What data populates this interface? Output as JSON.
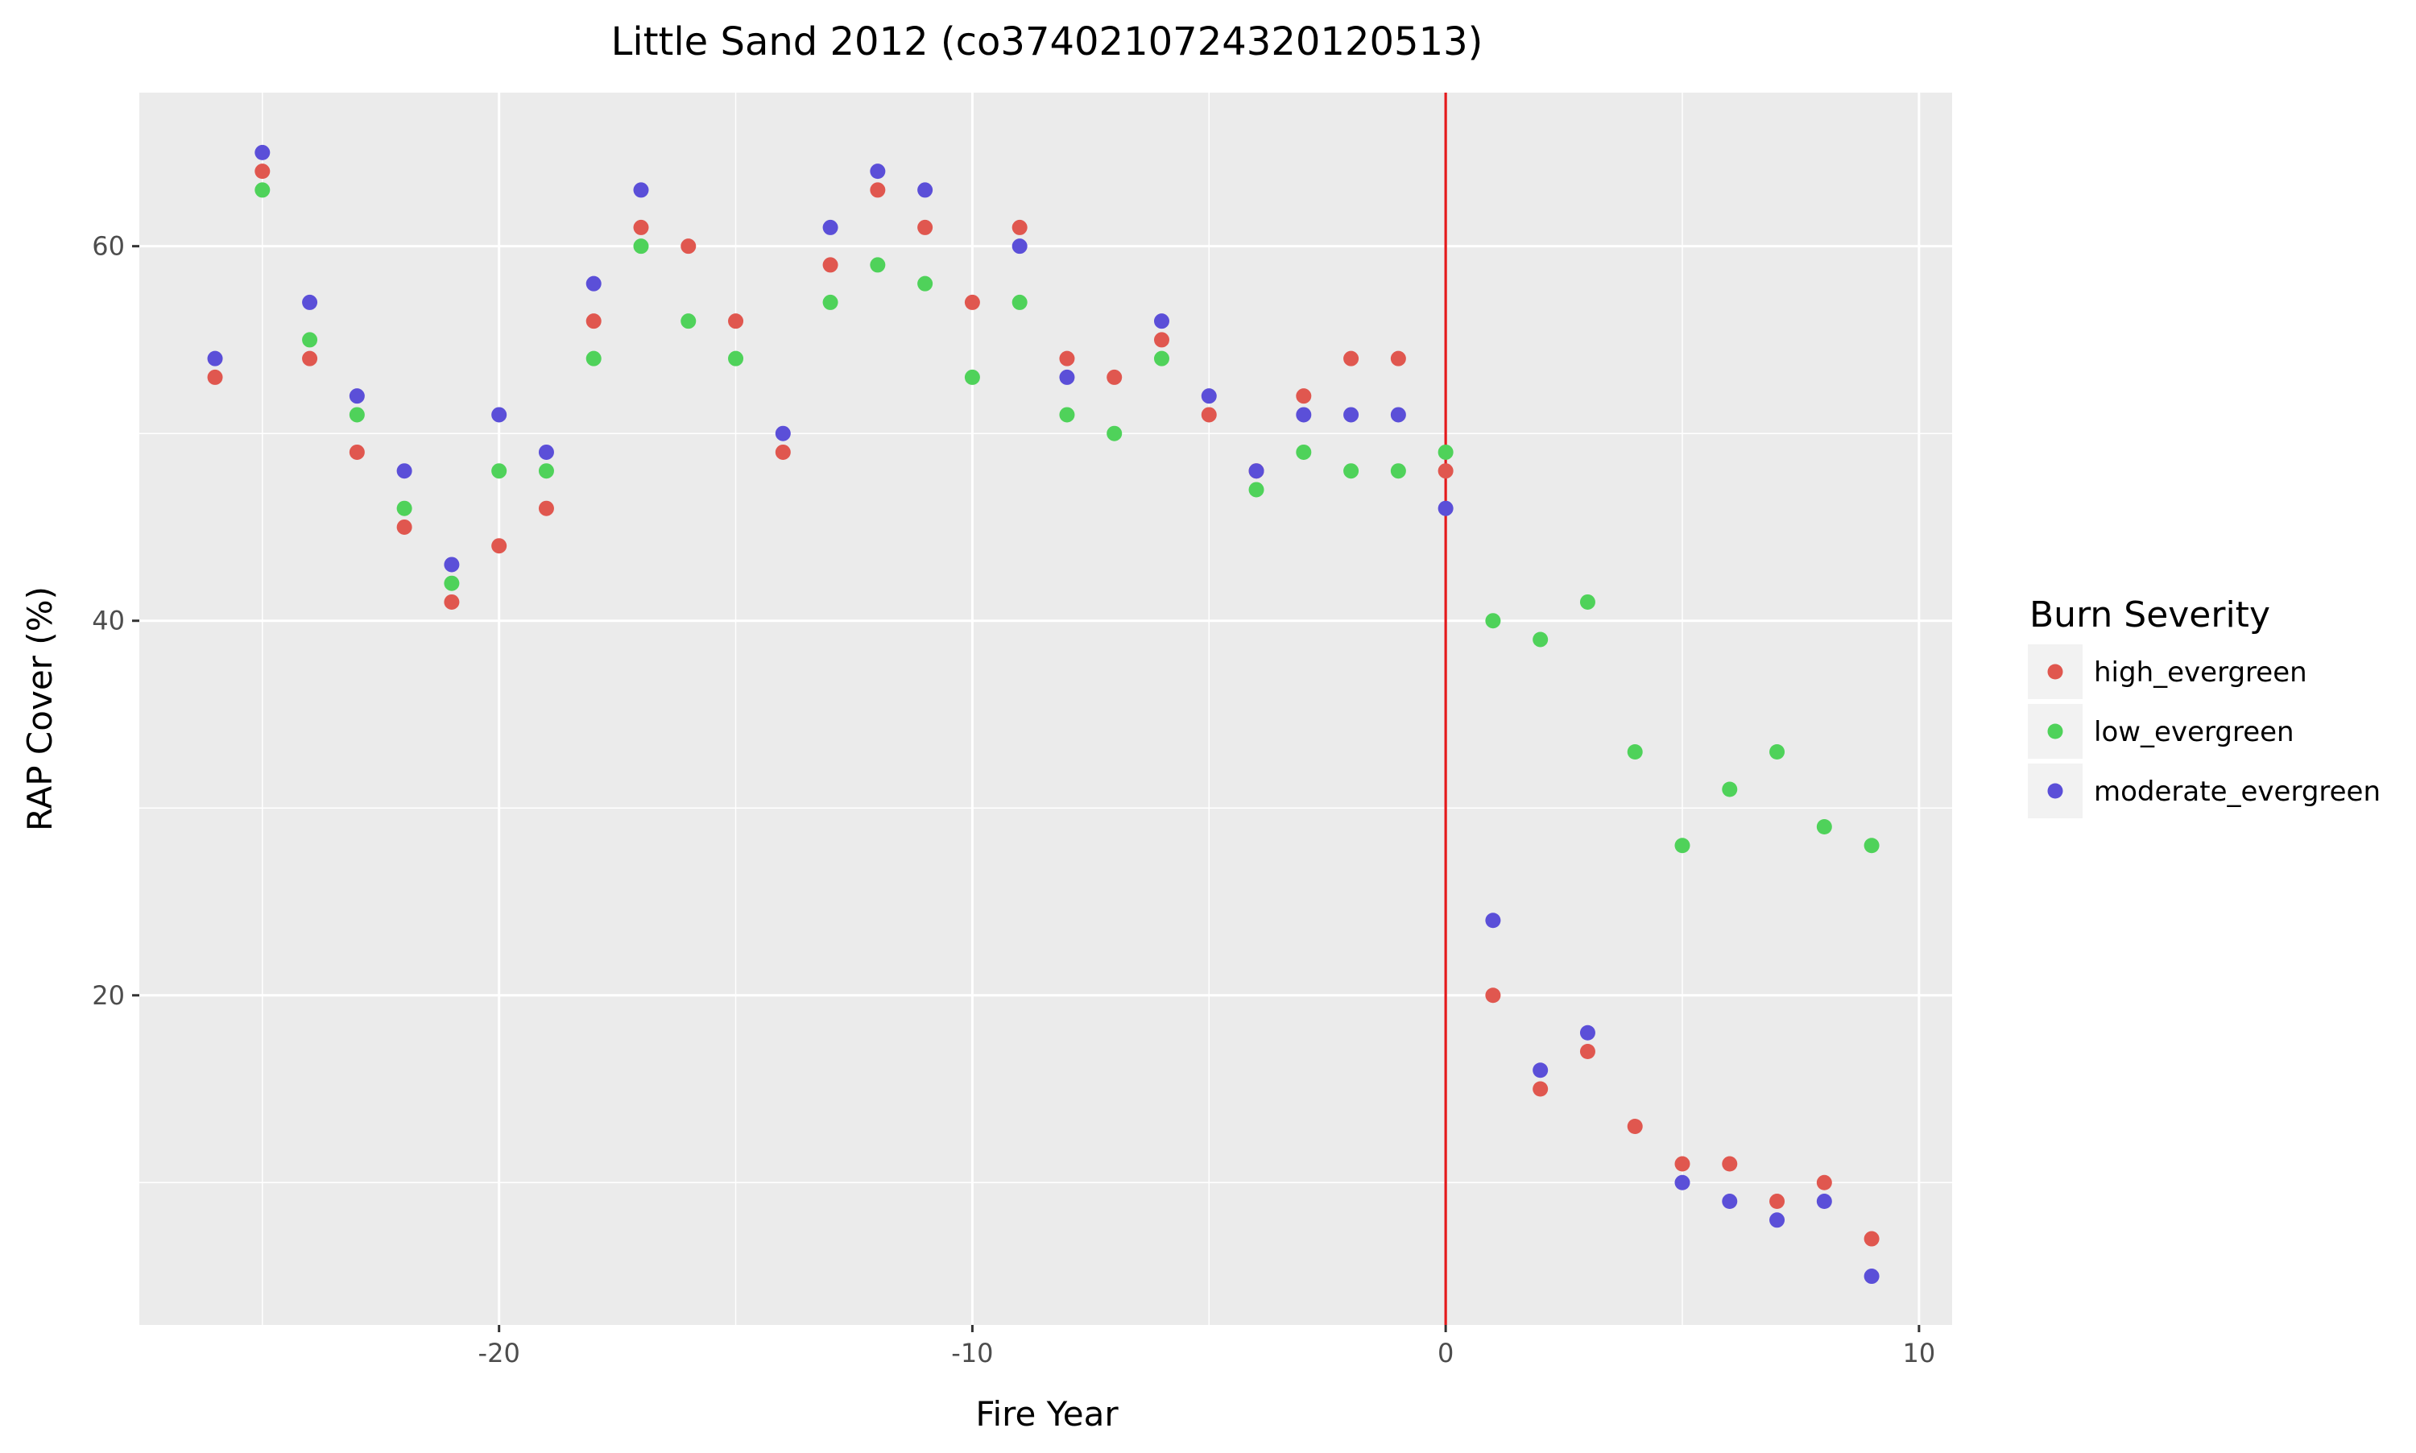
{
  "chart_data": {
    "type": "scatter",
    "title": "Little Sand 2012 (co37402107243201205​13)",
    "xlabel": "Fire Year",
    "ylabel": "RAP Cover (%)",
    "xlim": [
      -27.6,
      10.7
    ],
    "ylim": [
      2.4,
      68.2
    ],
    "x_ticks": [
      -20,
      -10,
      0,
      10
    ],
    "y_ticks": [
      20,
      40,
      60
    ],
    "grid": true,
    "legend": {
      "title": "Burn Severity",
      "position": "right"
    },
    "vline": {
      "x": 0,
      "color": "#e41a1c"
    },
    "series": [
      {
        "name": "high_evergreen",
        "color": "#e0574f",
        "points": [
          [
            -26,
            53
          ],
          [
            -25,
            64
          ],
          [
            -24,
            54
          ],
          [
            -23,
            49
          ],
          [
            -22,
            45
          ],
          [
            -21,
            41
          ],
          [
            -20,
            44
          ],
          [
            -19,
            46
          ],
          [
            -18,
            56
          ],
          [
            -17,
            61
          ],
          [
            -16,
            60
          ],
          [
            -15,
            56
          ],
          [
            -14,
            49
          ],
          [
            -13,
            59
          ],
          [
            -12,
            63
          ],
          [
            -11,
            61
          ],
          [
            -10,
            57
          ],
          [
            -9,
            61
          ],
          [
            -8,
            54
          ],
          [
            -7,
            53
          ],
          [
            -6,
            55
          ],
          [
            -5,
            51
          ],
          [
            -4,
            48
          ],
          [
            -3,
            52
          ],
          [
            -2,
            54
          ],
          [
            -1,
            54
          ],
          [
            0,
            48
          ],
          [
            1,
            20
          ],
          [
            2,
            15
          ],
          [
            3,
            17
          ],
          [
            4,
            13
          ],
          [
            5,
            11
          ],
          [
            6,
            11
          ],
          [
            7,
            9
          ],
          [
            8,
            10
          ],
          [
            9,
            7
          ]
        ]
      },
      {
        "name": "low_evergreen",
        "color": "#4fd25a",
        "points": [
          [
            -25,
            63
          ],
          [
            -24,
            55
          ],
          [
            -23,
            51
          ],
          [
            -22,
            46
          ],
          [
            -21,
            42
          ],
          [
            -20,
            48
          ],
          [
            -19,
            48
          ],
          [
            -18,
            54
          ],
          [
            -17,
            60
          ],
          [
            -16,
            56
          ],
          [
            -15,
            54
          ],
          [
            -13,
            57
          ],
          [
            -12,
            59
          ],
          [
            -11,
            58
          ],
          [
            -10,
            53
          ],
          [
            -9,
            57
          ],
          [
            -8,
            51
          ],
          [
            -7,
            50
          ],
          [
            -6,
            54
          ],
          [
            -4,
            47
          ],
          [
            -3,
            49
          ],
          [
            -2,
            48
          ],
          [
            -1,
            48
          ],
          [
            0,
            49
          ],
          [
            1,
            40
          ],
          [
            2,
            39
          ],
          [
            3,
            41
          ],
          [
            4,
            33
          ],
          [
            5,
            28
          ],
          [
            6,
            31
          ],
          [
            7,
            33
          ],
          [
            8,
            29
          ],
          [
            9,
            28
          ]
        ]
      },
      {
        "name": "moderate_evergreen",
        "color": "#5b4fd8",
        "points": [
          [
            -26,
            54
          ],
          [
            -25,
            65
          ],
          [
            -24,
            57
          ],
          [
            -23,
            52
          ],
          [
            -22,
            48
          ],
          [
            -21,
            43
          ],
          [
            -20,
            51
          ],
          [
            -19,
            49
          ],
          [
            -18,
            58
          ],
          [
            -17,
            63
          ],
          [
            -14,
            50
          ],
          [
            -13,
            61
          ],
          [
            -12,
            64
          ],
          [
            -11,
            63
          ],
          [
            -9,
            60
          ],
          [
            -8,
            53
          ],
          [
            -6,
            56
          ],
          [
            -5,
            52
          ],
          [
            -4,
            48
          ],
          [
            -3,
            51
          ],
          [
            -2,
            51
          ],
          [
            -1,
            51
          ],
          [
            0,
            46
          ],
          [
            1,
            24
          ],
          [
            2,
            16
          ],
          [
            3,
            18
          ],
          [
            5,
            10
          ],
          [
            6,
            9
          ],
          [
            7,
            8
          ],
          [
            8,
            9
          ],
          [
            9,
            5
          ]
        ]
      }
    ]
  }
}
